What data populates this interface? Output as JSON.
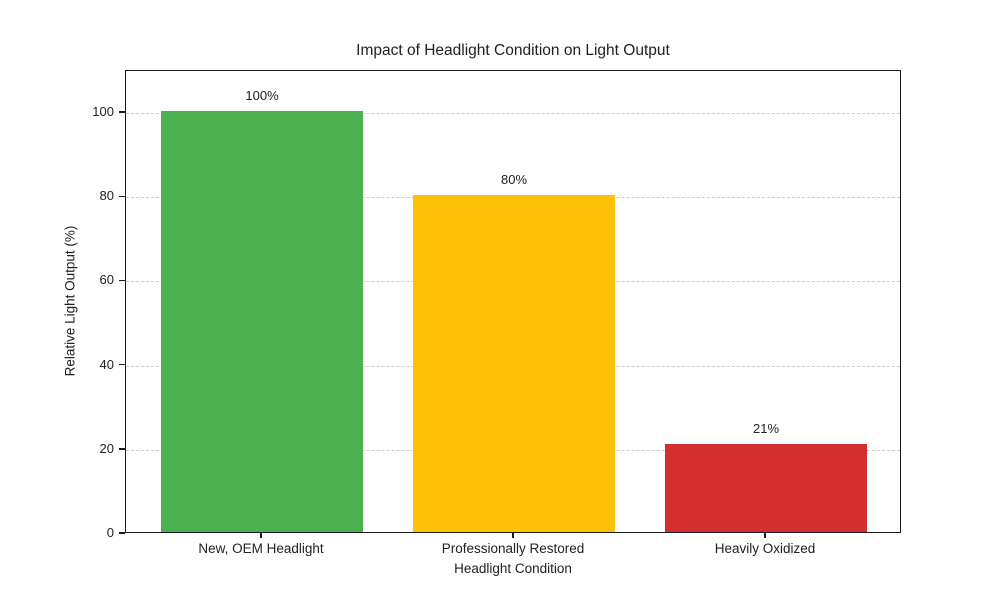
{
  "chart_data": {
    "type": "bar",
    "title": "Impact of Headlight Condition on Light Output",
    "xlabel": "Headlight Condition",
    "ylabel": "Relative Light Output (%)",
    "categories": [
      "New, OEM Headlight",
      "Professionally Restored",
      "Heavily Oxidized"
    ],
    "values": [
      100,
      80,
      21
    ],
    "value_labels": [
      "100%",
      "80%",
      "21%"
    ],
    "bar_colors": [
      "#4caf50",
      "#ffc107",
      "#d32f2f"
    ],
    "yticks": [
      0,
      20,
      40,
      60,
      80,
      100
    ],
    "ylim": [
      0,
      110
    ],
    "grid": true,
    "grid_color": "#cccccc",
    "grid_style": "dashed",
    "axis_color": "#1a1a1a",
    "text_color": "#212121",
    "background": "#ffffff",
    "legend": "none"
  }
}
